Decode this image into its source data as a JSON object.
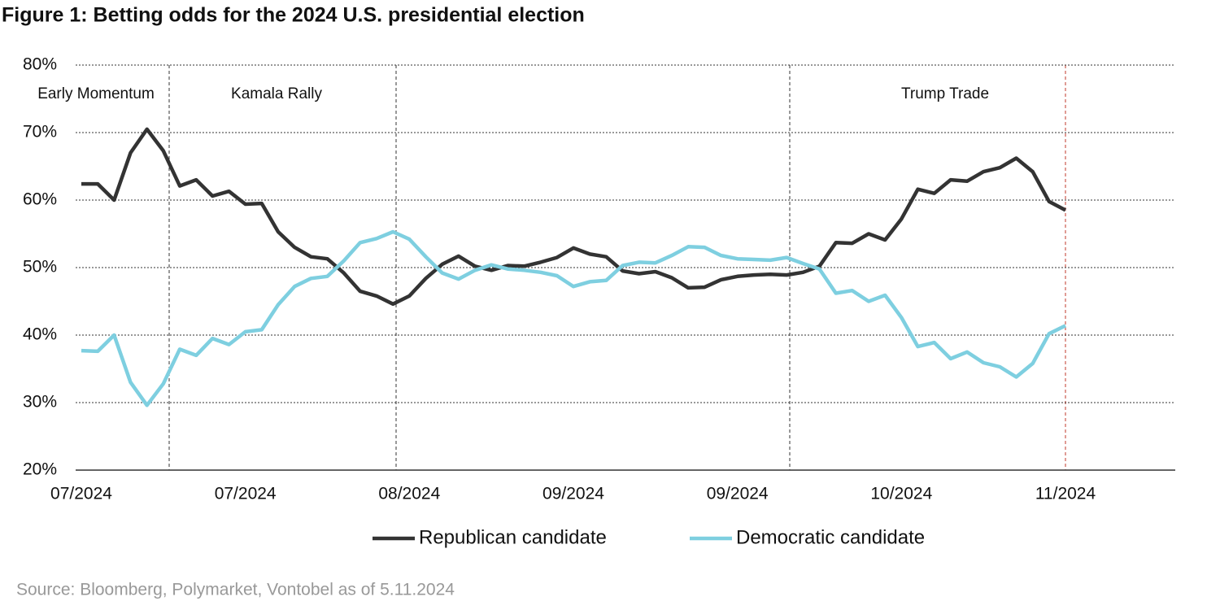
{
  "chart_data": {
    "type": "line",
    "title": "Figure 1: Betting odds for the 2024 U.S. presidential election",
    "categories": [
      "07/2024",
      null,
      null,
      null,
      null,
      null,
      null,
      null,
      null,
      null,
      "07/2024",
      null,
      null,
      null,
      null,
      null,
      null,
      null,
      null,
      null,
      "08/2024",
      null,
      null,
      null,
      null,
      null,
      null,
      null,
      null,
      null,
      "09/2024",
      null,
      null,
      null,
      null,
      null,
      null,
      null,
      null,
      null,
      "09/2024",
      null,
      null,
      null,
      null,
      null,
      null,
      null,
      null,
      null,
      "10/2024",
      null,
      null,
      null,
      null,
      null,
      null,
      null,
      null,
      null,
      "11/2024"
    ],
    "series": [
      {
        "name": "Republican candidate",
        "color": "#333333",
        "values": [
          62.4,
          62.4,
          60,
          67,
          70.5,
          67.3,
          62.1,
          63,
          60.6,
          61.3,
          59.4,
          59.5,
          55.3,
          53,
          51.6,
          51.3,
          49.2,
          46.5,
          45.8,
          44.6,
          45.8,
          48.4,
          50.5,
          51.7,
          50.2,
          49.6,
          50.3,
          50.2,
          50.8,
          51.5,
          52.9,
          52,
          51.6,
          49.5,
          49.1,
          49.4,
          48.5,
          47,
          47.1,
          48.2,
          48.7,
          48.9,
          49,
          48.9,
          49.3,
          50.2,
          53.7,
          53.6,
          55,
          54.1,
          57.2,
          61.6,
          61,
          63,
          62.8,
          64.2,
          64.8,
          66.2,
          64.2,
          59.8,
          58.5
        ]
      },
      {
        "name": "Democratic candidate",
        "color": "#7ecfe0",
        "values": [
          37.7,
          37.6,
          40,
          33,
          29.6,
          32.8,
          37.9,
          37,
          39.5,
          38.6,
          40.5,
          40.8,
          44.5,
          47.2,
          48.4,
          48.7,
          51,
          53.7,
          54.3,
          55.3,
          54.2,
          51.6,
          49.2,
          48.3,
          49.6,
          50.4,
          49.8,
          49.6,
          49.3,
          48.8,
          47.2,
          47.9,
          48.1,
          50.3,
          50.8,
          50.7,
          51.8,
          53.1,
          53,
          51.8,
          51.3,
          51.2,
          51.1,
          51.5,
          50.6,
          49.8,
          46.2,
          46.6,
          45,
          45.9,
          42.6,
          38.3,
          38.9,
          36.5,
          37.5,
          35.9,
          35.3,
          33.8,
          35.8,
          40.2,
          41.4
        ]
      }
    ],
    "ylim": [
      20,
      80
    ],
    "yticks": [
      {
        "value": 20,
        "label": "20%"
      },
      {
        "value": 30,
        "label": "30%"
      },
      {
        "value": 40,
        "label": "40%"
      },
      {
        "value": 50,
        "label": "50%"
      },
      {
        "value": 60,
        "label": "60%"
      },
      {
        "value": 70,
        "label": "70%"
      },
      {
        "value": 80,
        "label": "80%"
      }
    ],
    "grid": true,
    "legend": "bottom",
    "annotations": [
      "Early Momentum",
      "Kamala Rally",
      "Trump Trade"
    ],
    "source": "Source: Bloomberg, Polymarket, Vontobel as of 5.11.2024"
  }
}
